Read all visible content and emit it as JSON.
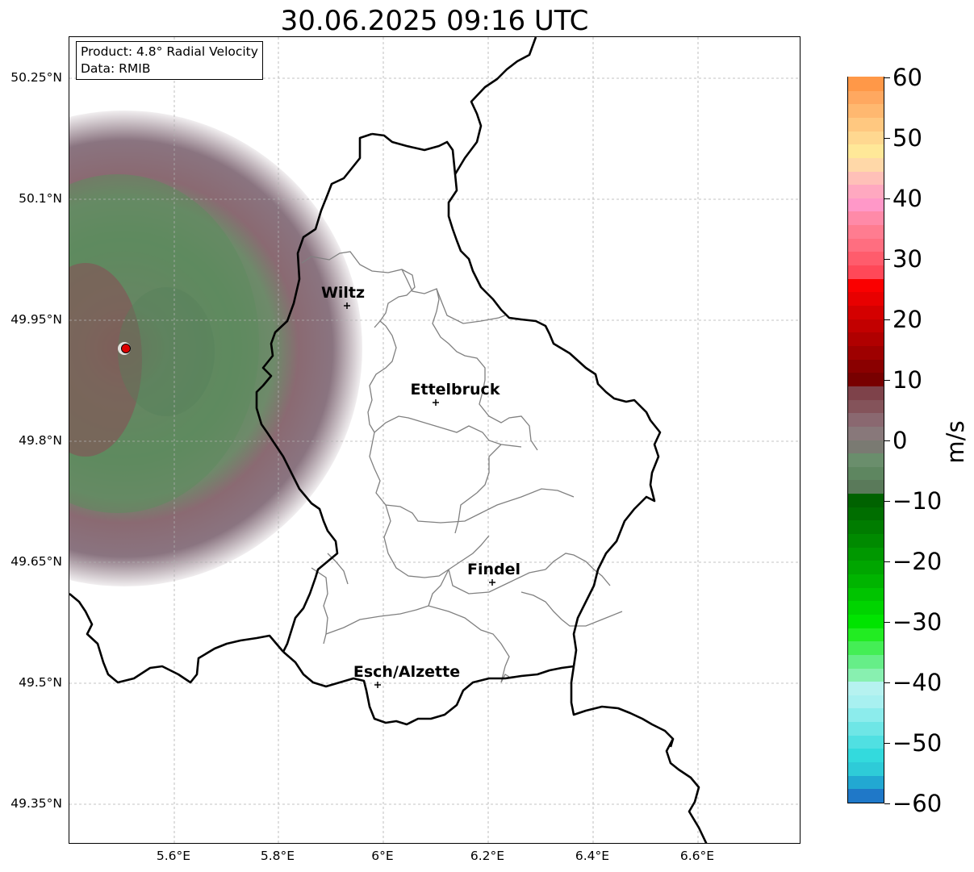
{
  "title": "30.06.2025 09:16 UTC",
  "info": {
    "product": "Product: 4.8° Radial Velocity",
    "data": "Data: RMIB"
  },
  "lat_labels": [
    "50.25°N",
    "50.1°N",
    "49.95°N",
    "49.8°N",
    "49.65°N",
    "49.5°N",
    "49.35°N"
  ],
  "lon_labels": [
    "5.6°E",
    "5.8°E",
    "6°E",
    "6.2°E",
    "6.4°E",
    "6.6°E"
  ],
  "cities": [
    {
      "name": "Wiltz"
    },
    {
      "name": "Ettelbruck"
    },
    {
      "name": "Findel"
    },
    {
      "name": "Esch/Alzette"
    }
  ],
  "radar_marker": "radar-site",
  "colorbar": {
    "unit": "m/s",
    "min": -60,
    "max": 60,
    "tick_labels": [
      "60",
      "50",
      "40",
      "30",
      "20",
      "10",
      "0",
      "−10",
      "−20",
      "−30",
      "−40",
      "−50",
      "−60"
    ],
    "colors": [
      "#1f78c8",
      "#22a8d2",
      "#2ecbd8",
      "#33dadd",
      "#50e0e2",
      "#6ee6e6",
      "#8cecec",
      "#a8f0f0",
      "#b6f2f0",
      "#88f0b0",
      "#66ee88",
      "#44ee55",
      "#22ec22",
      "#00e400",
      "#00d400",
      "#00c400",
      "#00b400",
      "#00a600",
      "#009800",
      "#008a00",
      "#007c00",
      "#006e00",
      "#006200",
      "#5a7a5a",
      "#5e8660",
      "#6a8e6c",
      "#7a7a72",
      "#88787a",
      "#8a6870",
      "#84535a",
      "#7e424a",
      "#780000",
      "#8a0000",
      "#9e0000",
      "#b00000",
      "#c20000",
      "#d40000",
      "#e80000",
      "#fa0000",
      "#ff4858",
      "#ff5c6c",
      "#ff6e80",
      "#ff7c90",
      "#ff8aa8",
      "#ff98c8",
      "#ffa8c0",
      "#ffc0b8",
      "#ffd8a8",
      "#ffe898",
      "#ffd890",
      "#ffc880",
      "#ffb870",
      "#ffa860",
      "#ff9848"
    ],
    "accent_radar_dot": "#dd0000"
  }
}
